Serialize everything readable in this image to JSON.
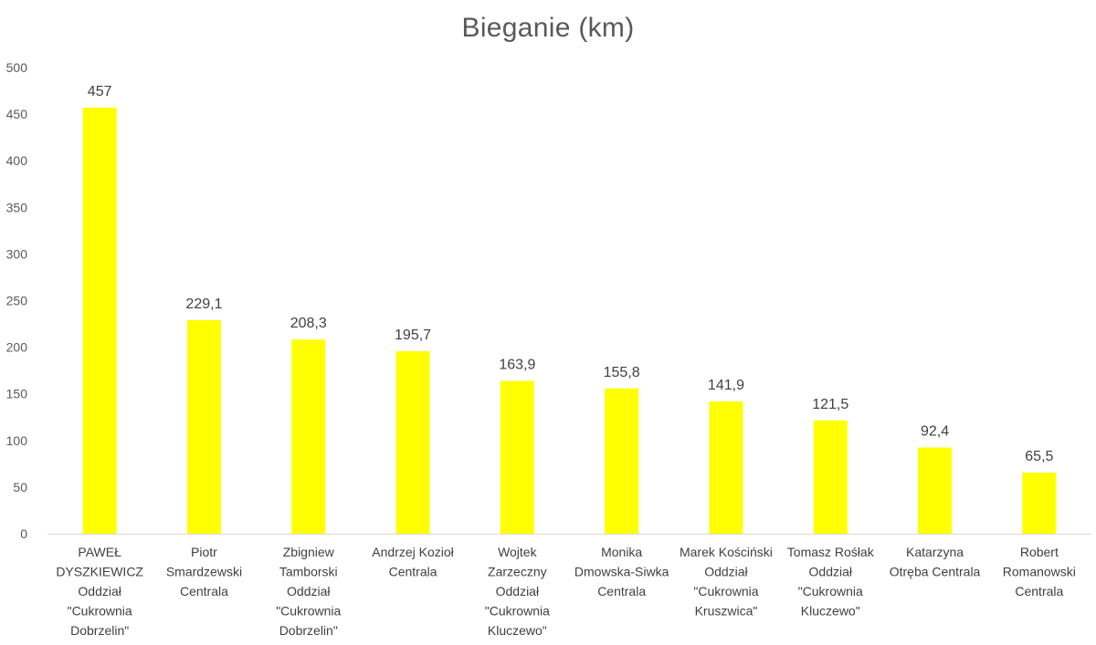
{
  "chart_data": {
    "type": "bar",
    "title": "Bieganie (km)",
    "xlabel": "",
    "ylabel": "",
    "ylim": [
      0,
      500
    ],
    "yticks": [
      0,
      50,
      100,
      150,
      200,
      250,
      300,
      350,
      400,
      450,
      500
    ],
    "grid": false,
    "bar_color": "#FFFF00",
    "categories": [
      [
        "PAWEŁ",
        "DYSZKIEWICZ",
        "Oddział",
        "\"Cukrownia",
        "Dobrzelin\""
      ],
      [
        "Piotr",
        "Smardzewski",
        "Centrala"
      ],
      [
        "Zbigniew",
        "Tamborski",
        "Oddział",
        "\"Cukrownia",
        "Dobrzelin\""
      ],
      [
        "Andrzej Kozioł",
        "Centrala"
      ],
      [
        "Wojtek",
        "Zarzeczny",
        "Oddział",
        "\"Cukrownia",
        "Kluczewo\""
      ],
      [
        "Monika",
        "Dmowska-Siwka",
        "Centrala"
      ],
      [
        "Marek Kościński",
        "Oddział",
        "\"Cukrownia",
        "Kruszwica\""
      ],
      [
        "Tomasz Rośłak",
        "Oddział",
        "\"Cukrownia",
        "Kluczewo\""
      ],
      [
        "Katarzyna",
        "Otręba Centrala"
      ],
      [
        "Robert",
        "Romanowski",
        "Centrala"
      ]
    ],
    "values": [
      457,
      229.1,
      208.3,
      195.7,
      163.9,
      155.8,
      141.9,
      121.5,
      92.4,
      65.5
    ],
    "value_labels": [
      "457",
      "229,1",
      "208,3",
      "195,7",
      "163,9",
      "155,8",
      "141,9",
      "121,5",
      "92,4",
      "65,5"
    ]
  }
}
